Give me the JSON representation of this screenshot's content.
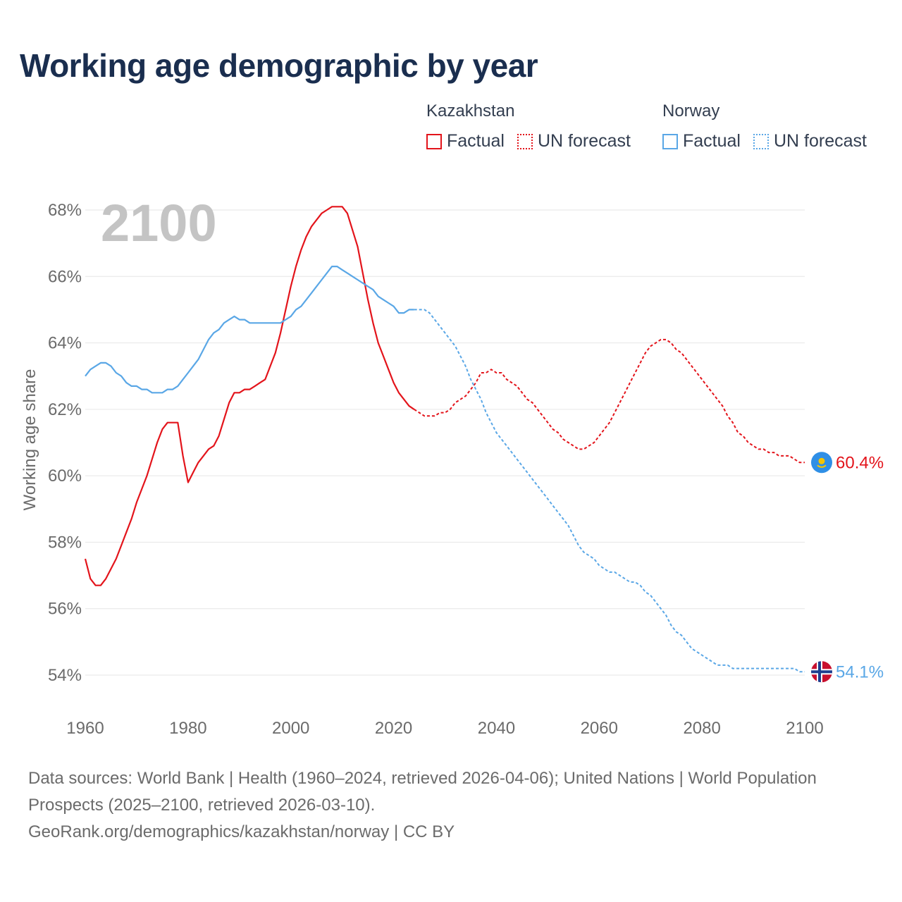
{
  "title": "Working age demographic by year",
  "legend": {
    "groups": [
      {
        "country": "Kazakhstan",
        "color": "#e3141b",
        "factual_label": "Factual",
        "forecast_label": "UN forecast"
      },
      {
        "country": "Norway",
        "color": "#5aa7e6",
        "factual_label": "Factual",
        "forecast_label": "UN forecast"
      }
    ]
  },
  "year_label": "2100",
  "source": {
    "line1": "Data sources: World Bank | Health (1960–2024, retrieved 2026-04-06); United Nations | World Population Prospects (2025–2100, retrieved 2026-03-10).",
    "line2": "GeoRank.org/demographics/kazakhstan/norway | CC BY"
  },
  "chart_data": {
    "type": "line",
    "title": "Working age demographic by year",
    "xlabel": "",
    "ylabel": "Working age share",
    "xlim": [
      1960,
      2100
    ],
    "ylim": [
      54,
      68
    ],
    "x_ticks": [
      1960,
      1980,
      2000,
      2020,
      2040,
      2060,
      2080,
      2100
    ],
    "y_ticks": [
      54,
      56,
      58,
      60,
      62,
      64,
      66,
      68
    ],
    "y_tick_labels": [
      "54%",
      "56%",
      "58%",
      "60%",
      "62%",
      "64%",
      "66%",
      "68%"
    ],
    "grid": true,
    "series": [
      {
        "name": "Kazakhstan",
        "color": "#e3141b",
        "end_label": "60.4%",
        "flag_icon": "kazakhstan-flag-icon",
        "factual": [
          [
            1960,
            57.5
          ],
          [
            1961,
            56.9
          ],
          [
            1962,
            56.7
          ],
          [
            1963,
            56.7
          ],
          [
            1964,
            56.9
          ],
          [
            1965,
            57.2
          ],
          [
            1966,
            57.5
          ],
          [
            1967,
            57.9
          ],
          [
            1968,
            58.3
          ],
          [
            1969,
            58.7
          ],
          [
            1970,
            59.2
          ],
          [
            1971,
            59.6
          ],
          [
            1972,
            60.0
          ],
          [
            1973,
            60.5
          ],
          [
            1974,
            61.0
          ],
          [
            1975,
            61.4
          ],
          [
            1976,
            61.6
          ],
          [
            1977,
            61.6
          ],
          [
            1978,
            61.6
          ],
          [
            1979,
            60.6
          ],
          [
            1980,
            59.8
          ],
          [
            1981,
            60.1
          ],
          [
            1982,
            60.4
          ],
          [
            1983,
            60.6
          ],
          [
            1984,
            60.8
          ],
          [
            1985,
            60.9
          ],
          [
            1986,
            61.2
          ],
          [
            1987,
            61.7
          ],
          [
            1988,
            62.2
          ],
          [
            1989,
            62.5
          ],
          [
            1990,
            62.5
          ],
          [
            1991,
            62.6
          ],
          [
            1992,
            62.6
          ],
          [
            1993,
            62.7
          ],
          [
            1994,
            62.8
          ],
          [
            1995,
            62.9
          ],
          [
            1996,
            63.3
          ],
          [
            1997,
            63.7
          ],
          [
            1998,
            64.3
          ],
          [
            1999,
            65.0
          ],
          [
            2000,
            65.7
          ],
          [
            2001,
            66.3
          ],
          [
            2002,
            66.8
          ],
          [
            2003,
            67.2
          ],
          [
            2004,
            67.5
          ],
          [
            2005,
            67.7
          ],
          [
            2006,
            67.9
          ],
          [
            2007,
            68.0
          ],
          [
            2008,
            68.1
          ],
          [
            2009,
            68.1
          ],
          [
            2010,
            68.1
          ],
          [
            2011,
            67.9
          ],
          [
            2012,
            67.4
          ],
          [
            2013,
            66.9
          ],
          [
            2014,
            66.1
          ],
          [
            2015,
            65.3
          ],
          [
            2016,
            64.6
          ],
          [
            2017,
            64.0
          ],
          [
            2018,
            63.6
          ],
          [
            2019,
            63.2
          ],
          [
            2020,
            62.8
          ],
          [
            2021,
            62.5
          ],
          [
            2022,
            62.3
          ],
          [
            2023,
            62.1
          ],
          [
            2024,
            62.0
          ]
        ],
        "forecast": [
          [
            2024,
            62.0
          ],
          [
            2025,
            61.9
          ],
          [
            2026,
            61.8
          ],
          [
            2027,
            61.8
          ],
          [
            2028,
            61.8
          ],
          [
            2029,
            61.9
          ],
          [
            2030,
            61.9
          ],
          [
            2031,
            62.0
          ],
          [
            2032,
            62.2
          ],
          [
            2033,
            62.3
          ],
          [
            2034,
            62.4
          ],
          [
            2035,
            62.6
          ],
          [
            2036,
            62.8
          ],
          [
            2037,
            63.1
          ],
          [
            2038,
            63.1
          ],
          [
            2039,
            63.2
          ],
          [
            2040,
            63.1
          ],
          [
            2041,
            63.1
          ],
          [
            2042,
            62.9
          ],
          [
            2043,
            62.8
          ],
          [
            2044,
            62.7
          ],
          [
            2045,
            62.5
          ],
          [
            2046,
            62.3
          ],
          [
            2047,
            62.2
          ],
          [
            2048,
            62.0
          ],
          [
            2049,
            61.8
          ],
          [
            2050,
            61.6
          ],
          [
            2051,
            61.4
          ],
          [
            2052,
            61.3
          ],
          [
            2053,
            61.1
          ],
          [
            2054,
            61.0
          ],
          [
            2055,
            60.9
          ],
          [
            2056,
            60.8
          ],
          [
            2057,
            60.8
          ],
          [
            2058,
            60.9
          ],
          [
            2059,
            61.0
          ],
          [
            2060,
            61.2
          ],
          [
            2061,
            61.4
          ],
          [
            2062,
            61.6
          ],
          [
            2063,
            61.9
          ],
          [
            2064,
            62.2
          ],
          [
            2065,
            62.5
          ],
          [
            2066,
            62.8
          ],
          [
            2067,
            63.1
          ],
          [
            2068,
            63.4
          ],
          [
            2069,
            63.7
          ],
          [
            2070,
            63.9
          ],
          [
            2071,
            64.0
          ],
          [
            2072,
            64.1
          ],
          [
            2073,
            64.1
          ],
          [
            2074,
            64.0
          ],
          [
            2075,
            63.8
          ],
          [
            2076,
            63.7
          ],
          [
            2077,
            63.5
          ],
          [
            2078,
            63.3
          ],
          [
            2079,
            63.1
          ],
          [
            2080,
            62.9
          ],
          [
            2081,
            62.7
          ],
          [
            2082,
            62.5
          ],
          [
            2083,
            62.3
          ],
          [
            2084,
            62.1
          ],
          [
            2085,
            61.8
          ],
          [
            2086,
            61.6
          ],
          [
            2087,
            61.3
          ],
          [
            2088,
            61.2
          ],
          [
            2089,
            61.0
          ],
          [
            2090,
            60.9
          ],
          [
            2091,
            60.8
          ],
          [
            2092,
            60.8
          ],
          [
            2093,
            60.7
          ],
          [
            2094,
            60.7
          ],
          [
            2095,
            60.6
          ],
          [
            2096,
            60.6
          ],
          [
            2097,
            60.6
          ],
          [
            2098,
            60.5
          ],
          [
            2099,
            60.4
          ],
          [
            2100,
            60.4
          ]
        ]
      },
      {
        "name": "Norway",
        "color": "#5aa7e6",
        "end_label": "54.1%",
        "flag_icon": "norway-flag-icon",
        "factual": [
          [
            1960,
            63.0
          ],
          [
            1961,
            63.2
          ],
          [
            1962,
            63.3
          ],
          [
            1963,
            63.4
          ],
          [
            1964,
            63.4
          ],
          [
            1965,
            63.3
          ],
          [
            1966,
            63.1
          ],
          [
            1967,
            63.0
          ],
          [
            1968,
            62.8
          ],
          [
            1969,
            62.7
          ],
          [
            1970,
            62.7
          ],
          [
            1971,
            62.6
          ],
          [
            1972,
            62.6
          ],
          [
            1973,
            62.5
          ],
          [
            1974,
            62.5
          ],
          [
            1975,
            62.5
          ],
          [
            1976,
            62.6
          ],
          [
            1977,
            62.6
          ],
          [
            1978,
            62.7
          ],
          [
            1979,
            62.9
          ],
          [
            1980,
            63.1
          ],
          [
            1981,
            63.3
          ],
          [
            1982,
            63.5
          ],
          [
            1983,
            63.8
          ],
          [
            1984,
            64.1
          ],
          [
            1985,
            64.3
          ],
          [
            1986,
            64.4
          ],
          [
            1987,
            64.6
          ],
          [
            1988,
            64.7
          ],
          [
            1989,
            64.8
          ],
          [
            1990,
            64.7
          ],
          [
            1991,
            64.7
          ],
          [
            1992,
            64.6
          ],
          [
            1993,
            64.6
          ],
          [
            1994,
            64.6
          ],
          [
            1995,
            64.6
          ],
          [
            1996,
            64.6
          ],
          [
            1997,
            64.6
          ],
          [
            1998,
            64.6
          ],
          [
            1999,
            64.7
          ],
          [
            2000,
            64.8
          ],
          [
            2001,
            65.0
          ],
          [
            2002,
            65.1
          ],
          [
            2003,
            65.3
          ],
          [
            2004,
            65.5
          ],
          [
            2005,
            65.7
          ],
          [
            2006,
            65.9
          ],
          [
            2007,
            66.1
          ],
          [
            2008,
            66.3
          ],
          [
            2009,
            66.3
          ],
          [
            2010,
            66.2
          ],
          [
            2011,
            66.1
          ],
          [
            2012,
            66.0
          ],
          [
            2013,
            65.9
          ],
          [
            2014,
            65.8
          ],
          [
            2015,
            65.7
          ],
          [
            2016,
            65.6
          ],
          [
            2017,
            65.4
          ],
          [
            2018,
            65.3
          ],
          [
            2019,
            65.2
          ],
          [
            2020,
            65.1
          ],
          [
            2021,
            64.9
          ],
          [
            2022,
            64.9
          ],
          [
            2023,
            65.0
          ],
          [
            2024,
            65.0
          ]
        ],
        "forecast": [
          [
            2024,
            65.0
          ],
          [
            2025,
            65.0
          ],
          [
            2026,
            65.0
          ],
          [
            2027,
            64.9
          ],
          [
            2028,
            64.7
          ],
          [
            2029,
            64.5
          ],
          [
            2030,
            64.3
          ],
          [
            2031,
            64.1
          ],
          [
            2032,
            63.9
          ],
          [
            2033,
            63.6
          ],
          [
            2034,
            63.3
          ],
          [
            2035,
            62.9
          ],
          [
            2036,
            62.6
          ],
          [
            2037,
            62.3
          ],
          [
            2038,
            61.9
          ],
          [
            2039,
            61.6
          ],
          [
            2040,
            61.3
          ],
          [
            2041,
            61.1
          ],
          [
            2042,
            60.9
          ],
          [
            2043,
            60.7
          ],
          [
            2044,
            60.5
          ],
          [
            2045,
            60.3
          ],
          [
            2046,
            60.1
          ],
          [
            2047,
            59.9
          ],
          [
            2048,
            59.7
          ],
          [
            2049,
            59.5
          ],
          [
            2050,
            59.3
          ],
          [
            2051,
            59.1
          ],
          [
            2052,
            58.9
          ],
          [
            2053,
            58.7
          ],
          [
            2054,
            58.5
          ],
          [
            2055,
            58.2
          ],
          [
            2056,
            57.9
          ],
          [
            2057,
            57.7
          ],
          [
            2058,
            57.6
          ],
          [
            2059,
            57.5
          ],
          [
            2060,
            57.3
          ],
          [
            2061,
            57.2
          ],
          [
            2062,
            57.1
          ],
          [
            2063,
            57.1
          ],
          [
            2064,
            57.0
          ],
          [
            2065,
            56.9
          ],
          [
            2066,
            56.8
          ],
          [
            2067,
            56.8
          ],
          [
            2068,
            56.7
          ],
          [
            2069,
            56.5
          ],
          [
            2070,
            56.4
          ],
          [
            2071,
            56.2
          ],
          [
            2072,
            56.0
          ],
          [
            2073,
            55.8
          ],
          [
            2074,
            55.5
          ],
          [
            2075,
            55.3
          ],
          [
            2076,
            55.2
          ],
          [
            2077,
            55.0
          ],
          [
            2078,
            54.8
          ],
          [
            2079,
            54.7
          ],
          [
            2080,
            54.6
          ],
          [
            2081,
            54.5
          ],
          [
            2082,
            54.4
          ],
          [
            2083,
            54.3
          ],
          [
            2084,
            54.3
          ],
          [
            2085,
            54.3
          ],
          [
            2086,
            54.2
          ],
          [
            2087,
            54.2
          ],
          [
            2088,
            54.2
          ],
          [
            2089,
            54.2
          ],
          [
            2090,
            54.2
          ],
          [
            2091,
            54.2
          ],
          [
            2092,
            54.2
          ],
          [
            2093,
            54.2
          ],
          [
            2094,
            54.2
          ],
          [
            2095,
            54.2
          ],
          [
            2096,
            54.2
          ],
          [
            2097,
            54.2
          ],
          [
            2098,
            54.2
          ],
          [
            2099,
            54.1
          ],
          [
            2100,
            54.1
          ]
        ]
      }
    ]
  }
}
